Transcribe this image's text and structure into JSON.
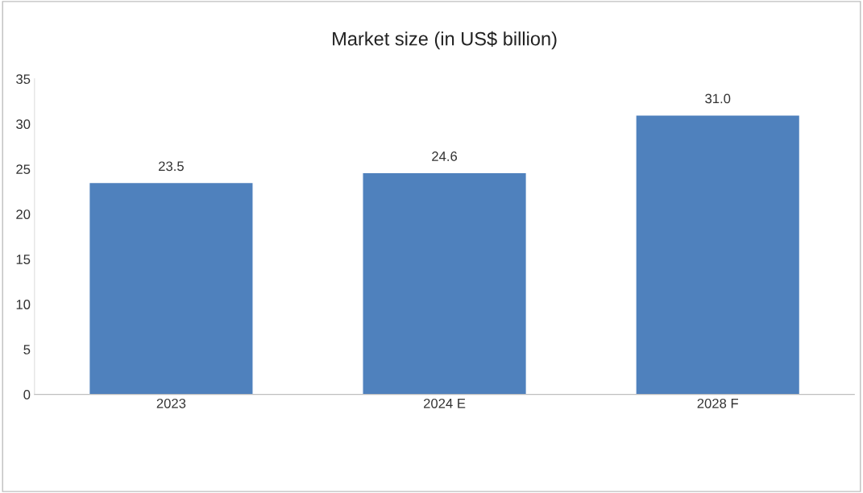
{
  "chart_data": {
    "type": "bar",
    "title": "Market size (in US$ billion)",
    "categories": [
      "2023",
      "2024 E",
      "2028 F"
    ],
    "values": [
      23.5,
      24.6,
      31.0
    ],
    "value_labels": [
      "23.5",
      "24.6",
      "31.0"
    ],
    "color": "#4f81bd",
    "ylim": [
      0,
      35
    ],
    "yticks": [
      0,
      5,
      10,
      15,
      20,
      25,
      30,
      35
    ],
    "grid": false,
    "legend": false
  }
}
